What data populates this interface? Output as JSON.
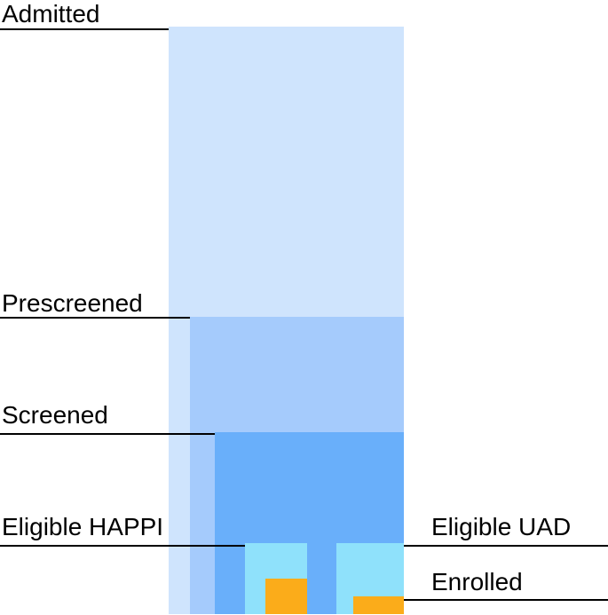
{
  "diagram": {
    "stages": [
      {
        "key": "admitted",
        "label": "Admitted"
      },
      {
        "key": "prescreened",
        "label": "Prescreened"
      },
      {
        "key": "screened",
        "label": "Screened"
      },
      {
        "key": "eligible_happi",
        "label": "Eligible HAPPI"
      },
      {
        "key": "eligible_uad",
        "label": "Eligible UAD"
      },
      {
        "key": "enrolled",
        "label": "Enrolled"
      }
    ],
    "colors": {
      "admitted": "#cfe4fd",
      "prescreened": "#a5cbfc",
      "screened": "#69affa",
      "eligible": "#8fe1fb",
      "enrolled": "#fbac1a",
      "leader": "#000000"
    }
  }
}
